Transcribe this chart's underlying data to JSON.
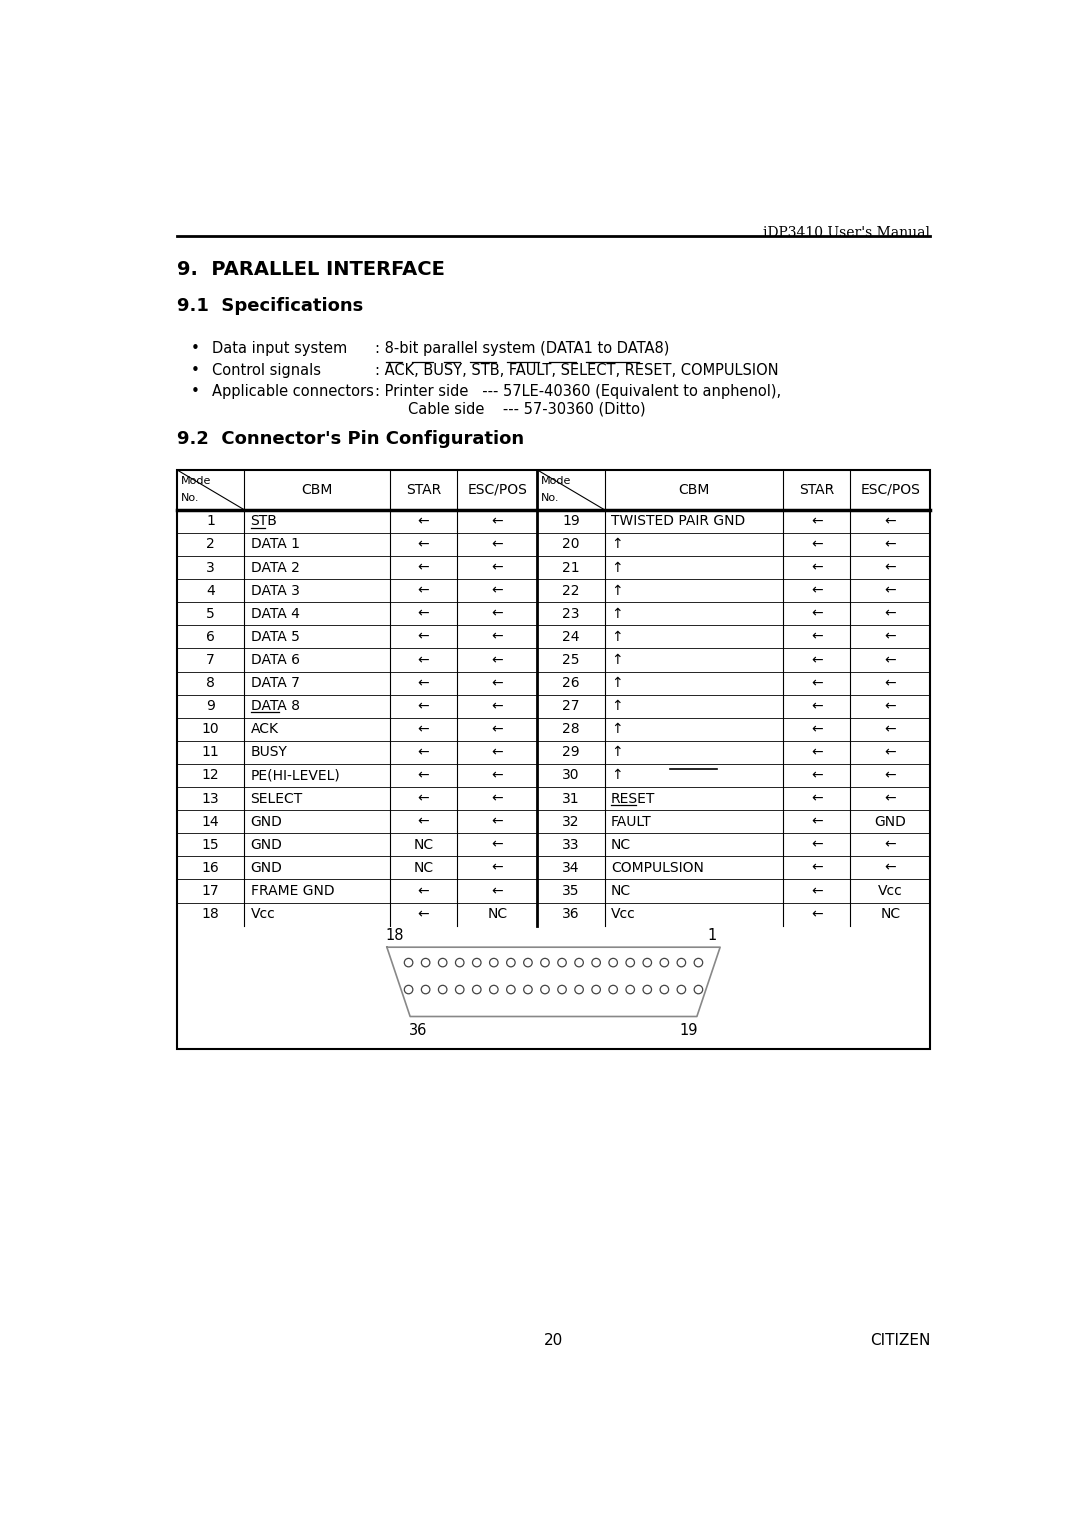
{
  "page_header": "iDP3410 User's Manual",
  "section9_title": "9.  PARALLEL INTERFACE",
  "section91_title": "9.1  Specifications",
  "bullets": [
    {
      "label": "Data input system",
      "value": ": 8-bit parallel system (DATA1 to DATA8)"
    },
    {
      "label": "Control signals",
      "value": ": ACK, BUSY, STB, FAULT, SELECT, RESET, COMPULSION"
    },
    {
      "label": "Applicable connectors",
      "value1": ": Printer side   --- 57LE-40360 (Equivalent to anphenol),",
      "value2": "Cable side    --- 57-30360 (Ditto)"
    }
  ],
  "section92_title": "9.2  Connector's Pin Configuration",
  "table_rows": [
    [
      "1",
      "STB",
      "←",
      "←",
      "19",
      "TWISTED PAIR GND",
      "←",
      "←"
    ],
    [
      "2",
      "DATA 1",
      "←",
      "←",
      "20",
      "↑",
      "←",
      "←"
    ],
    [
      "3",
      "DATA 2",
      "←",
      "←",
      "21",
      "↑",
      "←",
      "←"
    ],
    [
      "4",
      "DATA 3",
      "←",
      "←",
      "22",
      "↑",
      "←",
      "←"
    ],
    [
      "5",
      "DATA 4",
      "←",
      "←",
      "23",
      "↑",
      "←",
      "←"
    ],
    [
      "6",
      "DATA 5",
      "←",
      "←",
      "24",
      "↑",
      "←",
      "←"
    ],
    [
      "7",
      "DATA 6",
      "←",
      "←",
      "25",
      "↑",
      "←",
      "←"
    ],
    [
      "8",
      "DATA 7",
      "←",
      "←",
      "26",
      "↑",
      "←",
      "←"
    ],
    [
      "9",
      "DATA 8",
      "←",
      "←",
      "27",
      "↑",
      "←",
      "←"
    ],
    [
      "10",
      "ACK",
      "←",
      "←",
      "28",
      "↑",
      "←",
      "←"
    ],
    [
      "11",
      "BUSY",
      "←",
      "←",
      "29",
      "↑",
      "←",
      "←"
    ],
    [
      "12",
      "PE(HI-LEVEL)",
      "←",
      "←",
      "30",
      "↑",
      "←",
      "←"
    ],
    [
      "13",
      "SELECT",
      "←",
      "←",
      "31",
      "RESET",
      "←",
      "←"
    ],
    [
      "14",
      "GND",
      "←",
      "←",
      "32",
      "FAULT",
      "←",
      "GND"
    ],
    [
      "15",
      "GND",
      "NC",
      "←",
      "33",
      "NC",
      "←",
      "←"
    ],
    [
      "16",
      "GND",
      "NC",
      "←",
      "34",
      "COMPULSION",
      "←",
      "←"
    ],
    [
      "17",
      "FRAME GND",
      "←",
      "←",
      "35",
      "NC",
      "←",
      "Vcc"
    ],
    [
      "18",
      "Vcc",
      "←",
      "NC",
      "36",
      "Vcc",
      "←",
      "NC"
    ]
  ],
  "page_number": "20",
  "footer_right": "CITIZEN",
  "bg_color": "#ffffff",
  "text_color": "#000000"
}
